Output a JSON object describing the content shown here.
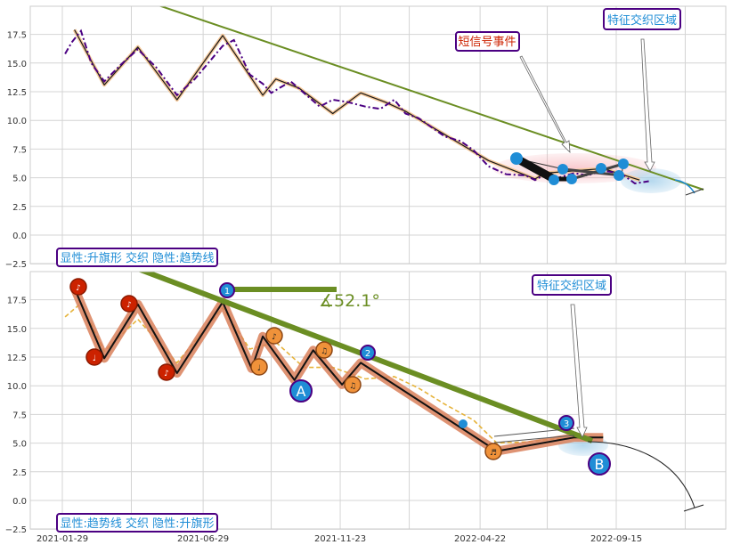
{
  "colors": {
    "price_top": "#4b0082",
    "price_bottom": "#e6b33a",
    "zigzag_top": "#8b4513",
    "trendline": "#6b8e23",
    "marker_blue": "#1f8dd6",
    "marker_red": "#cc2200",
    "marker_orange": "#f0923a",
    "box_border": "#4b0082",
    "callout_red_text": "#cc2200",
    "callout_blue_text": "#1f8dd6"
  },
  "chart_data": [
    {
      "type": "line",
      "panel": "top",
      "y_ticks": [
        "17.5",
        "15.0",
        "12.5",
        "10.0",
        "7.5",
        "5.0",
        "2.5",
        "0.0",
        "−2.5"
      ],
      "ylim": [
        -2.5,
        20
      ],
      "grid": true,
      "series": [
        {
          "style": "dash-dot price",
          "x": [
            "2021-02-01",
            "2021-02-08",
            "2021-02-18",
            "2021-03-01",
            "2021-03-15",
            "2021-04-01",
            "2021-04-20",
            "2021-05-10",
            "2021-06-01",
            "2021-06-20",
            "2021-07-20",
            "2021-08-01",
            "2021-08-18",
            "2021-09-01",
            "2021-09-10",
            "2021-10-01",
            "2021-10-15",
            "2021-11-01",
            "2021-11-15",
            "2021-12-01",
            "2021-12-20",
            "2022-01-05",
            "2022-01-20",
            "2022-02-01",
            "2022-02-15",
            "2022-03-01",
            "2022-03-15",
            "2022-04-01",
            "2022-04-15",
            "2022-05-01",
            "2022-05-20",
            "2022-06-10",
            "2022-06-20",
            "2022-07-01",
            "2022-07-15",
            "2022-08-01",
            "2022-08-15",
            "2022-09-01",
            "2022-09-20",
            "2022-10-05",
            "2022-10-20"
          ],
          "values": [
            15.8,
            16.8,
            17.8,
            15.0,
            13.4,
            14.8,
            16.2,
            14.6,
            12.2,
            13.6,
            16.5,
            17.0,
            14.0,
            13.2,
            12.4,
            13.4,
            12.4,
            11.2,
            11.8,
            11.6,
            11.2,
            11.0,
            11.8,
            10.6,
            10.2,
            9.4,
            8.6,
            8.2,
            7.4,
            6.0,
            5.3,
            5.2,
            4.8,
            5.3,
            5.0,
            5.4,
            5.2,
            5.6,
            5.4,
            4.5,
            4.7
          ]
        },
        {
          "style": "zigzag",
          "x": [
            "2021-02-11",
            "2021-03-15",
            "2021-04-20",
            "2021-06-01",
            "2021-07-20",
            "2021-09-01",
            "2021-09-15",
            "2021-10-10",
            "2021-11-15",
            "2021-12-15",
            "2022-01-10",
            "2022-02-01",
            "2022-05-01",
            "2022-06-20",
            "2022-07-01",
            "2022-09-01",
            "2022-10-10"
          ],
          "values": [
            17.9,
            13.1,
            16.4,
            11.8,
            17.4,
            12.2,
            13.6,
            12.8,
            10.6,
            12.4,
            11.6,
            10.8,
            6.5,
            4.9,
            5.4,
            5.8,
            4.8
          ]
        }
      ],
      "annotations": [
        "短信号事件",
        "特征交织区域"
      ]
    },
    {
      "type": "line",
      "panel": "bottom",
      "x_ticks": [
        "2021-01-29",
        "2021-06-29",
        "2021-11-23",
        "2022-04-22",
        "2022-09-15"
      ],
      "y_ticks": [
        "17.5",
        "15.0",
        "12.5",
        "10.0",
        "7.5",
        "5.0",
        "2.5",
        "0.0",
        "−2.5"
      ],
      "ylim": [
        -2.5,
        20
      ],
      "grid": true,
      "series": [
        {
          "style": "dashed price",
          "x": [
            "2021-02-01",
            "2021-02-18",
            "2021-03-15",
            "2021-04-20",
            "2021-06-01",
            "2021-07-20",
            "2021-08-18",
            "2021-09-15",
            "2021-10-15",
            "2021-11-15",
            "2021-12-20",
            "2022-01-20",
            "2022-02-15",
            "2022-03-15",
            "2022-04-15",
            "2022-05-10",
            "2022-06-10",
            "2022-07-15",
            "2022-08-15",
            "2022-09-01"
          ],
          "values": [
            16.0,
            17.2,
            13.0,
            15.8,
            12.0,
            16.8,
            13.2,
            13.8,
            11.6,
            11.6,
            10.6,
            10.8,
            9.8,
            8.4,
            7.0,
            5.0,
            5.1,
            5.4,
            5.4,
            5.6
          ]
        },
        {
          "style": "zigzag",
          "x": [
            "2021-02-11",
            "2021-03-15",
            "2021-04-20",
            "2021-06-01",
            "2021-07-20",
            "2021-08-20",
            "2021-09-01",
            "2021-10-05",
            "2021-10-25",
            "2021-11-25",
            "2021-12-15",
            "2022-05-10",
            "2022-08-01",
            "2022-09-01"
          ],
          "values": [
            18.5,
            12.4,
            17.1,
            11.1,
            17.3,
            11.5,
            14.3,
            10.5,
            13.1,
            10.1,
            12.0,
            4.3,
            5.5,
            5.5
          ]
        }
      ],
      "annotations": [
        "特征交织区域",
        "∡52.1°"
      ],
      "markers": [
        "1",
        "2",
        "3",
        "A",
        "B"
      ]
    }
  ],
  "legend_boxes": {
    "top": "显性:升旗形 交织 隐性:趋势线",
    "bottom": "显性:趋势线 交织 隐性:升旗形"
  },
  "callouts": {
    "short_signal": "短信号事件",
    "feature_zone_top": "特征交织区域",
    "feature_zone_bottom": "特征交织区域",
    "angle": "∡52.1°"
  },
  "markers": {
    "n1": "1",
    "n2": "2",
    "n3": "3",
    "a": "A",
    "b": "B"
  },
  "icons": [
    "eighth-note-icon",
    "beamed-notes-icon",
    "quarter-note-icon"
  ]
}
